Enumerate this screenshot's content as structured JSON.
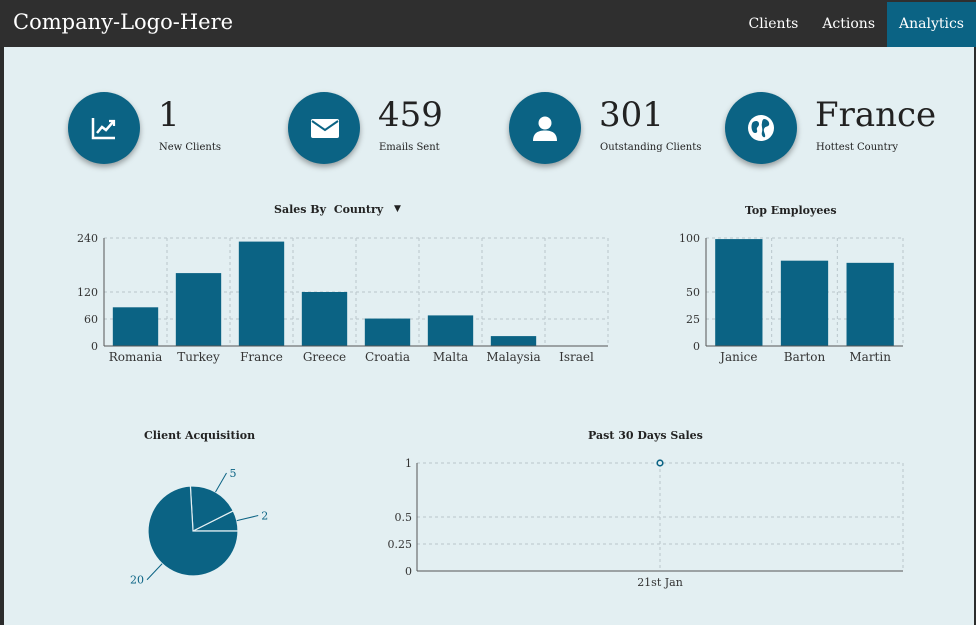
{
  "header": {
    "logo": "Company-Logo-Here",
    "nav": [
      {
        "label": "Clients",
        "active": false
      },
      {
        "label": "Actions",
        "active": false
      },
      {
        "label": "Analytics",
        "active": true
      }
    ]
  },
  "stats": [
    {
      "value": "1",
      "label": "New Clients",
      "icon": "trend-chart-icon"
    },
    {
      "value": "459",
      "label": "Emails Sent",
      "icon": "envelope-icon"
    },
    {
      "value": "301",
      "label": "Outstanding Clients",
      "icon": "user-icon"
    },
    {
      "value": "France",
      "label": "Hottest Country",
      "icon": "globe-icon"
    }
  ],
  "colors": {
    "accent": "#0b6384",
    "background": "#e3eff2",
    "header": "#2f2f2f"
  },
  "sales_by": {
    "label": "Sales By",
    "selected": "Country"
  },
  "top_employees_title": "Top Employees",
  "client_acquisition_title": "Client Acquisition",
  "past_sales_title": "Past 30 Days Sales",
  "chart_data": [
    {
      "id": "sales",
      "type": "bar",
      "title": "Sales By Country",
      "categories": [
        "Romania",
        "Turkey",
        "France",
        "Greece",
        "Croatia",
        "Malta",
        "Malaysia",
        "Israel"
      ],
      "values": [
        86,
        162,
        232,
        120,
        61,
        68,
        22,
        0
      ],
      "yticks": [
        0,
        60,
        120,
        240
      ],
      "ylim": [
        0,
        240
      ],
      "grid": true
    },
    {
      "id": "employees",
      "type": "bar",
      "title": "Top Employees",
      "categories": [
        "Janice",
        "Barton",
        "Martin"
      ],
      "values": [
        99,
        79,
        77
      ],
      "yticks": [
        0,
        25,
        50,
        100
      ],
      "ylim": [
        0,
        100
      ],
      "grid": true
    },
    {
      "id": "acquisition",
      "type": "pie",
      "title": "Client Acquisition",
      "values": [
        20,
        5,
        2
      ],
      "labels": [
        "20",
        "5",
        "2"
      ]
    },
    {
      "id": "past30",
      "type": "scatter",
      "title": "Past 30 Days Sales",
      "x": [
        "21st Jan"
      ],
      "y": [
        1
      ],
      "yticks": [
        0,
        0.25,
        0.5,
        1
      ],
      "ylim": [
        0,
        1
      ],
      "grid": true
    }
  ]
}
